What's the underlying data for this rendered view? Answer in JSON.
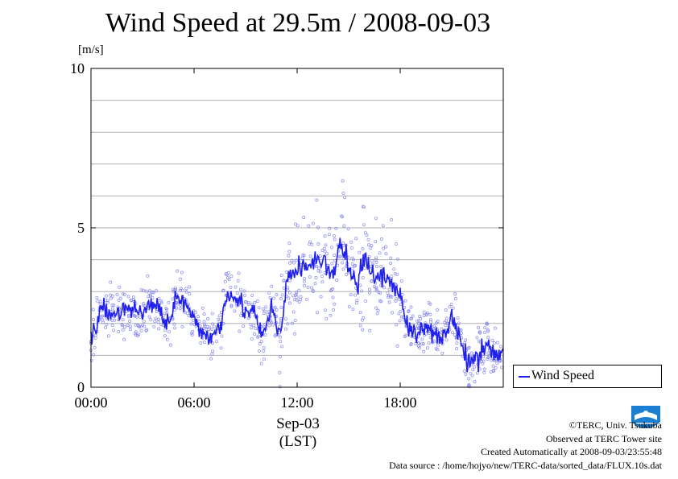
{
  "chart_data": {
    "type": "line",
    "title": "Wind Speed at 29.5m / 2008-09-03",
    "ylabel": "[m/s]",
    "ylim": [
      0,
      10
    ],
    "yticks": [
      "0",
      "5",
      "10"
    ],
    "xlim": [
      "00:00",
      "24:00"
    ],
    "xticks": [
      "00:00",
      "06:00",
      "12:00",
      "18:00"
    ],
    "xlabel_date": "Sep-03",
    "xlabel_tz": "(LST)",
    "grid": true,
    "legend": "right-bottom",
    "series": [
      {
        "name": "Wind Speed",
        "color": "#2020ee",
        "scatter_color": "#8a8af0",
        "x": [
          0.0,
          0.5,
          1.0,
          1.5,
          2.0,
          2.5,
          3.0,
          3.5,
          4.0,
          4.5,
          5.0,
          5.5,
          6.0,
          6.5,
          7.0,
          7.5,
          8.0,
          8.5,
          9.0,
          9.5,
          10.0,
          10.5,
          11.0,
          11.5,
          12.0,
          12.5,
          13.0,
          13.5,
          14.0,
          14.5,
          15.0,
          15.5,
          16.0,
          16.5,
          17.0,
          17.5,
          18.0,
          18.5,
          19.0,
          19.5,
          20.0,
          20.5,
          21.0,
          21.5,
          22.0,
          22.5,
          23.0,
          23.5
        ],
        "values": [
          1.5,
          2.3,
          2.4,
          2.3,
          2.5,
          2.4,
          2.4,
          2.6,
          2.4,
          2.1,
          2.8,
          2.6,
          2.0,
          1.7,
          1.6,
          1.9,
          3.1,
          2.8,
          2.4,
          2.3,
          1.5,
          2.5,
          1.6,
          3.5,
          3.7,
          3.8,
          3.9,
          4.1,
          3.3,
          4.5,
          3.8,
          3.2,
          4.1,
          3.4,
          3.5,
          3.3,
          2.9,
          1.8,
          1.6,
          1.9,
          1.8,
          1.5,
          2.3,
          1.4,
          0.7,
          0.9,
          1.5,
          1.0
        ]
      }
    ]
  },
  "legend": {
    "label": "Wind Speed"
  },
  "footer": {
    "copyright": "©TERC, Univ. Tsukuba",
    "observed": "Observed at TERC Tower site",
    "created": "Created Automatically at 2008-09-03/23:55:48",
    "source": "Data source : /home/hojyo/new/TERC-data/sorted_data/FLUX.10s.dat"
  }
}
